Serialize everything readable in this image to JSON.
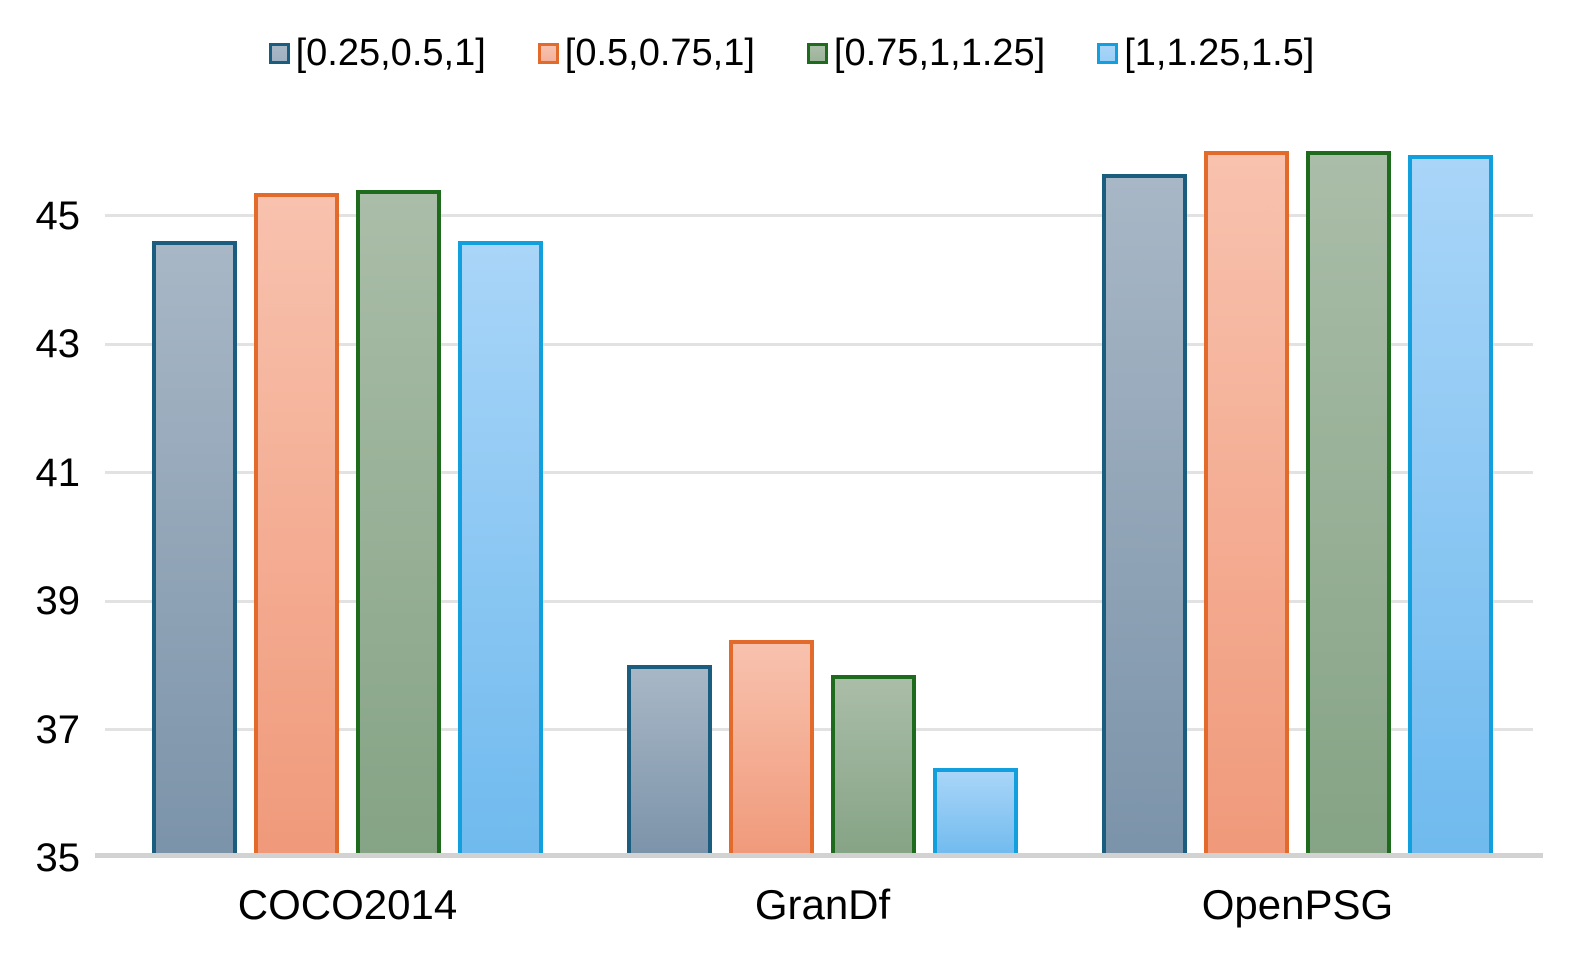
{
  "chart_data": {
    "type": "bar",
    "title": "",
    "xlabel": "",
    "ylabel": "",
    "categories": [
      "COCO2014",
      "GranDf",
      "OpenPSG"
    ],
    "series": [
      {
        "name": "[0.25,0.5,1]",
        "values": [
          44.6,
          38.0,
          45.65
        ],
        "border_color": "#1a5d7e",
        "fill_top": "#a8b7c6",
        "fill_bottom": "#7b93a9",
        "legend_fill": "#9fb1c1"
      },
      {
        "name": "[0.5,0.75,1]",
        "values": [
          45.35,
          38.4,
          46.0
        ],
        "border_color": "#e26a2b",
        "fill_top": "#f8c2ae",
        "fill_bottom": "#f0997a",
        "legend_fill": "#f3b29c"
      },
      {
        "name": "[0.75,1,1.25]",
        "values": [
          45.4,
          37.85,
          46.0
        ],
        "border_color": "#1e6b1e",
        "fill_top": "#aabda8",
        "fill_bottom": "#85a385",
        "legend_fill": "#9cb49a"
      },
      {
        "name": "[1,1.25,1.5]",
        "values": [
          44.6,
          36.4,
          45.95
        ],
        "border_color": "#129fdd",
        "fill_top": "#a9d5f8",
        "fill_bottom": "#6fbaee",
        "legend_fill": "#9bcff6"
      }
    ],
    "yticks": [
      35,
      37,
      39,
      41,
      43,
      45
    ],
    "ylim": [
      35,
      46.1
    ],
    "grid": true,
    "legend_position": "top",
    "gridline_color": "#e2e2e2",
    "axis_line_color": "#d2d2d2",
    "background": "#ffffff",
    "text_color": "#000000"
  }
}
